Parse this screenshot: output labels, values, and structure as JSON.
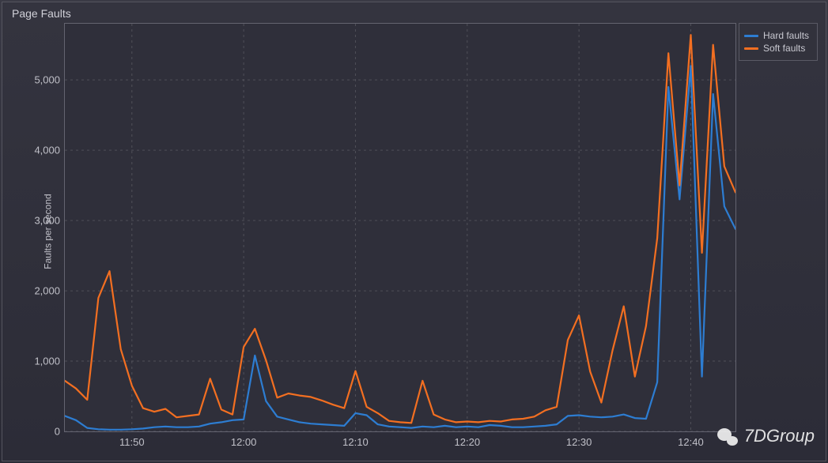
{
  "title": "Page Faults",
  "ylabel": "Faults per second",
  "legend": {
    "items": [
      {
        "label": "Hard faults",
        "color": "#2d7dd2"
      },
      {
        "label": "Soft faults",
        "color": "#f36f21"
      }
    ],
    "position": "top-right"
  },
  "watermark": "7DGroup",
  "chart": {
    "type": "line",
    "background_color": "#2f2f3a",
    "panel_border_color": "#646470",
    "grid_color": "#6a6a72",
    "grid_dash": "3,4",
    "line_width": 2.2,
    "xlim_minutes": [
      704,
      764
    ],
    "ylim": [
      0,
      5800
    ],
    "yticks": [
      0,
      1000,
      2000,
      3000,
      4000,
      5000
    ],
    "ytick_labels": [
      "0",
      "1,000",
      "2,000",
      "3,000",
      "4,000",
      "5,000"
    ],
    "xticks": [
      710,
      720,
      730,
      740,
      750,
      760
    ],
    "xtick_labels": [
      "11:50",
      "12:00",
      "12:10",
      "12:20",
      "12:30",
      "12:40"
    ],
    "series": [
      {
        "name": "Hard faults",
        "color": "#2d7dd2",
        "x": [
          704,
          705,
          706,
          707,
          708,
          709,
          710,
          711,
          712,
          713,
          714,
          715,
          716,
          717,
          718,
          719,
          720,
          721,
          722,
          723,
          724,
          725,
          726,
          727,
          728,
          729,
          730,
          731,
          732,
          733,
          734,
          735,
          736,
          737,
          738,
          739,
          740,
          741,
          742,
          743,
          744,
          745,
          746,
          747,
          748,
          749,
          750,
          751,
          752,
          753,
          754,
          755,
          756,
          757,
          758,
          759,
          760,
          761,
          762,
          763,
          764
        ],
        "y": [
          220,
          160,
          50,
          30,
          25,
          25,
          30,
          40,
          60,
          70,
          60,
          60,
          70,
          110,
          130,
          160,
          170,
          1080,
          430,
          210,
          170,
          130,
          110,
          100,
          90,
          80,
          260,
          230,
          100,
          70,
          60,
          50,
          70,
          60,
          80,
          60,
          70,
          60,
          90,
          80,
          60,
          60,
          70,
          80,
          100,
          220,
          230,
          210,
          200,
          210,
          240,
          190,
          180,
          700,
          4900,
          3300,
          5200,
          780,
          4800,
          3200,
          2880
        ]
      },
      {
        "name": "Soft faults",
        "color": "#f36f21",
        "x": [
          704,
          705,
          706,
          707,
          708,
          709,
          710,
          711,
          712,
          713,
          714,
          715,
          716,
          717,
          718,
          719,
          720,
          721,
          722,
          723,
          724,
          725,
          726,
          727,
          728,
          729,
          730,
          731,
          732,
          733,
          734,
          735,
          736,
          737,
          738,
          739,
          740,
          741,
          742,
          743,
          744,
          745,
          746,
          747,
          748,
          749,
          750,
          751,
          752,
          753,
          754,
          755,
          756,
          757,
          758,
          759,
          760,
          761,
          762,
          763,
          764
        ],
        "y": [
          720,
          610,
          450,
          1900,
          2280,
          1170,
          650,
          330,
          280,
          320,
          200,
          220,
          240,
          750,
          310,
          240,
          1200,
          1460,
          1010,
          480,
          540,
          510,
          490,
          440,
          380,
          330,
          860,
          350,
          260,
          150,
          130,
          120,
          720,
          240,
          170,
          130,
          140,
          130,
          150,
          140,
          170,
          180,
          210,
          300,
          350,
          1300,
          1650,
          850,
          410,
          1150,
          1780,
          780,
          1500,
          2750,
          5380,
          3500,
          5640,
          2540,
          5500,
          3770,
          3400
        ]
      }
    ]
  }
}
